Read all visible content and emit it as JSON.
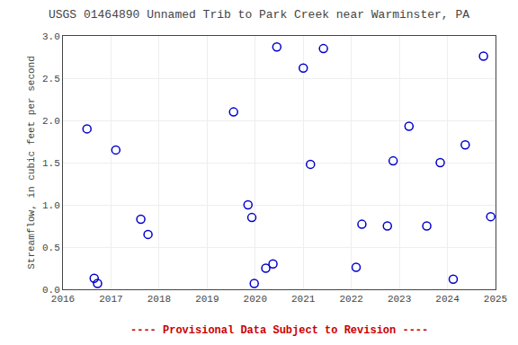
{
  "chart_data": {
    "type": "scatter",
    "title": "USGS 01464890 Unnamed Trib to Park Creek near Warminster, PA",
    "ylabel": "Streamflow, in cubic feet per second",
    "annotations": [
      {
        "text": "---- Provisional Data Subject to Revision ----",
        "color": "#cc0000"
      }
    ],
    "x": [
      2016.5,
      2016.65,
      2016.72,
      2017.1,
      2017.62,
      2017.77,
      2019.55,
      2019.85,
      2019.93,
      2019.98,
      2020.22,
      2020.37,
      2020.45,
      2021.0,
      2021.15,
      2021.42,
      2022.1,
      2022.22,
      2022.75,
      2022.87,
      2023.2,
      2023.57,
      2023.85,
      2024.12,
      2024.37,
      2024.75,
      2024.9
    ],
    "values": [
      1.9,
      0.13,
      0.07,
      1.65,
      0.83,
      0.65,
      2.1,
      1.0,
      0.85,
      0.07,
      0.25,
      0.3,
      2.87,
      2.62,
      1.48,
      2.85,
      0.26,
      0.77,
      0.75,
      1.52,
      1.93,
      0.75,
      1.5,
      0.12,
      1.71,
      2.76,
      0.86
    ],
    "color": "#0000cc",
    "marker": "circle-open",
    "xlim": [
      2016,
      2025
    ],
    "xticks": [
      2016,
      2017,
      2018,
      2019,
      2020,
      2021,
      2022,
      2023,
      2024,
      2025
    ],
    "ylim": [
      0.0,
      3.0
    ],
    "yticks": [
      {
        "value": 0.0,
        "label": "0.0"
      },
      0.5,
      {
        "value": 1.0,
        "label": "1.0"
      },
      1.5,
      {
        "value": 2.0,
        "label": "2.0"
      },
      2.5,
      {
        "value": 3.0,
        "label": "3.0"
      }
    ],
    "grid": true
  }
}
